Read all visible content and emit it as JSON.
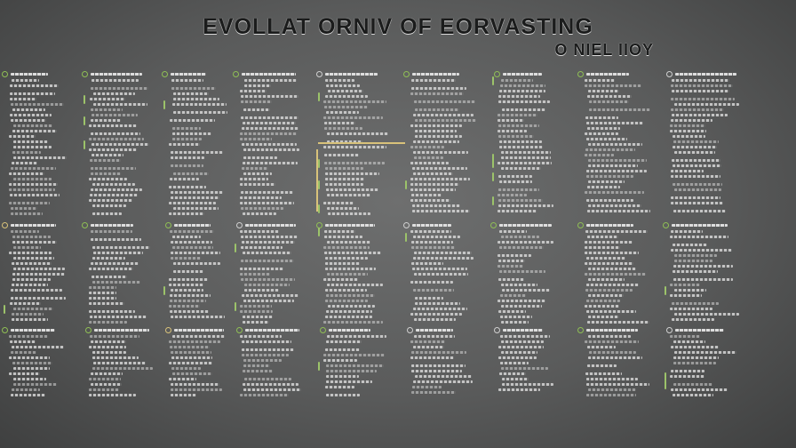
{
  "title": "EVOLLAT ORNIV OF EORVASTING",
  "subtitle": "O NIEL IIOY",
  "colors": {
    "background": "#5f6060",
    "title": "#1b1c1c",
    "text_lines": "#d6d6d6",
    "green_marker": "#8fbf55",
    "yellow_marker": "#d8c27a"
  }
}
